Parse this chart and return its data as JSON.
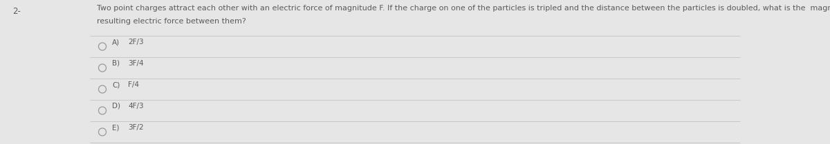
{
  "question_number": "2-",
  "question_text_line1": "Two point charges attract each other with an electric force of magnitude F. If the charge on one of the particles is tripled and the distance between the particles is doubled, what is the  magnitude of the",
  "question_text_line2": "resulting electric force between them?",
  "options": [
    {
      "label": "A)",
      "text": "2F/3"
    },
    {
      "label": "B)",
      "text": "3F/4"
    },
    {
      "label": "C)",
      "text": "F/4"
    },
    {
      "label": "D)",
      "text": "4F/3"
    },
    {
      "label": "E)",
      "text": "3F/2"
    }
  ],
  "bg_color": "#e6e6e6",
  "text_color": "#5a5a5a",
  "circle_color": "#999999",
  "separator_color": "#c8c8c8",
  "question_fontsize": 8.0,
  "option_fontsize": 7.5,
  "question_num_fontsize": 8.5
}
